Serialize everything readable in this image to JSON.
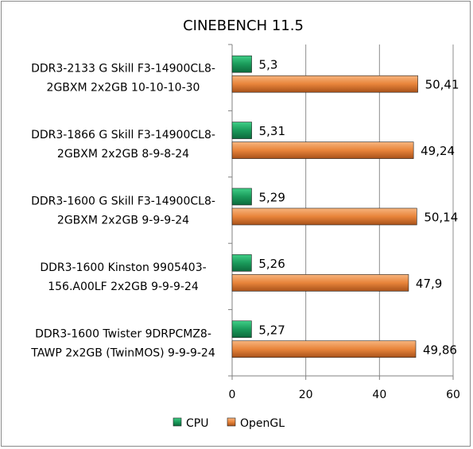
{
  "chart_data": {
    "type": "bar",
    "orientation": "horizontal",
    "title": "CINEBENCH 11.5",
    "categories": [
      [
        "DDR3-2133 G Skill F3-14900CL8-",
        "2GBXM 2x2GB 10-10-10-30"
      ],
      [
        "DDR3-1866 G Skill F3-14900CL8-",
        "2GBXM 2x2GB 8-9-8-24"
      ],
      [
        "DDR3-1600 G Skill F3-14900CL8-",
        "2GBXM 2x2GB 9-9-9-24"
      ],
      [
        "DDR3-1600 Kinston 9905403-",
        "156.A00LF 2x2GB 9-9-9-24"
      ],
      [
        "DDR3-1600 Twister 9DRPCMZ8-",
        "TAWP 2x2GB (TwinMOS) 9-9-9-24"
      ]
    ],
    "series": [
      {
        "name": "CPU",
        "color": "#1a9a5a",
        "values": [
          5.3,
          5.31,
          5.29,
          5.26,
          5.27
        ],
        "labels": [
          "5,3",
          "5,31",
          "5,29",
          "5,26",
          "5,27"
        ]
      },
      {
        "name": "OpenGL",
        "color": "#e8843a",
        "values": [
          50.41,
          49.24,
          50.14,
          47.9,
          49.86
        ],
        "labels": [
          "50,41",
          "49,24",
          "50,14",
          "47,9",
          "49,86"
        ]
      }
    ],
    "xlim": [
      0,
      60
    ],
    "xticks": [
      "0",
      "20",
      "40",
      "60"
    ],
    "grid": true,
    "legend": "bottom"
  }
}
